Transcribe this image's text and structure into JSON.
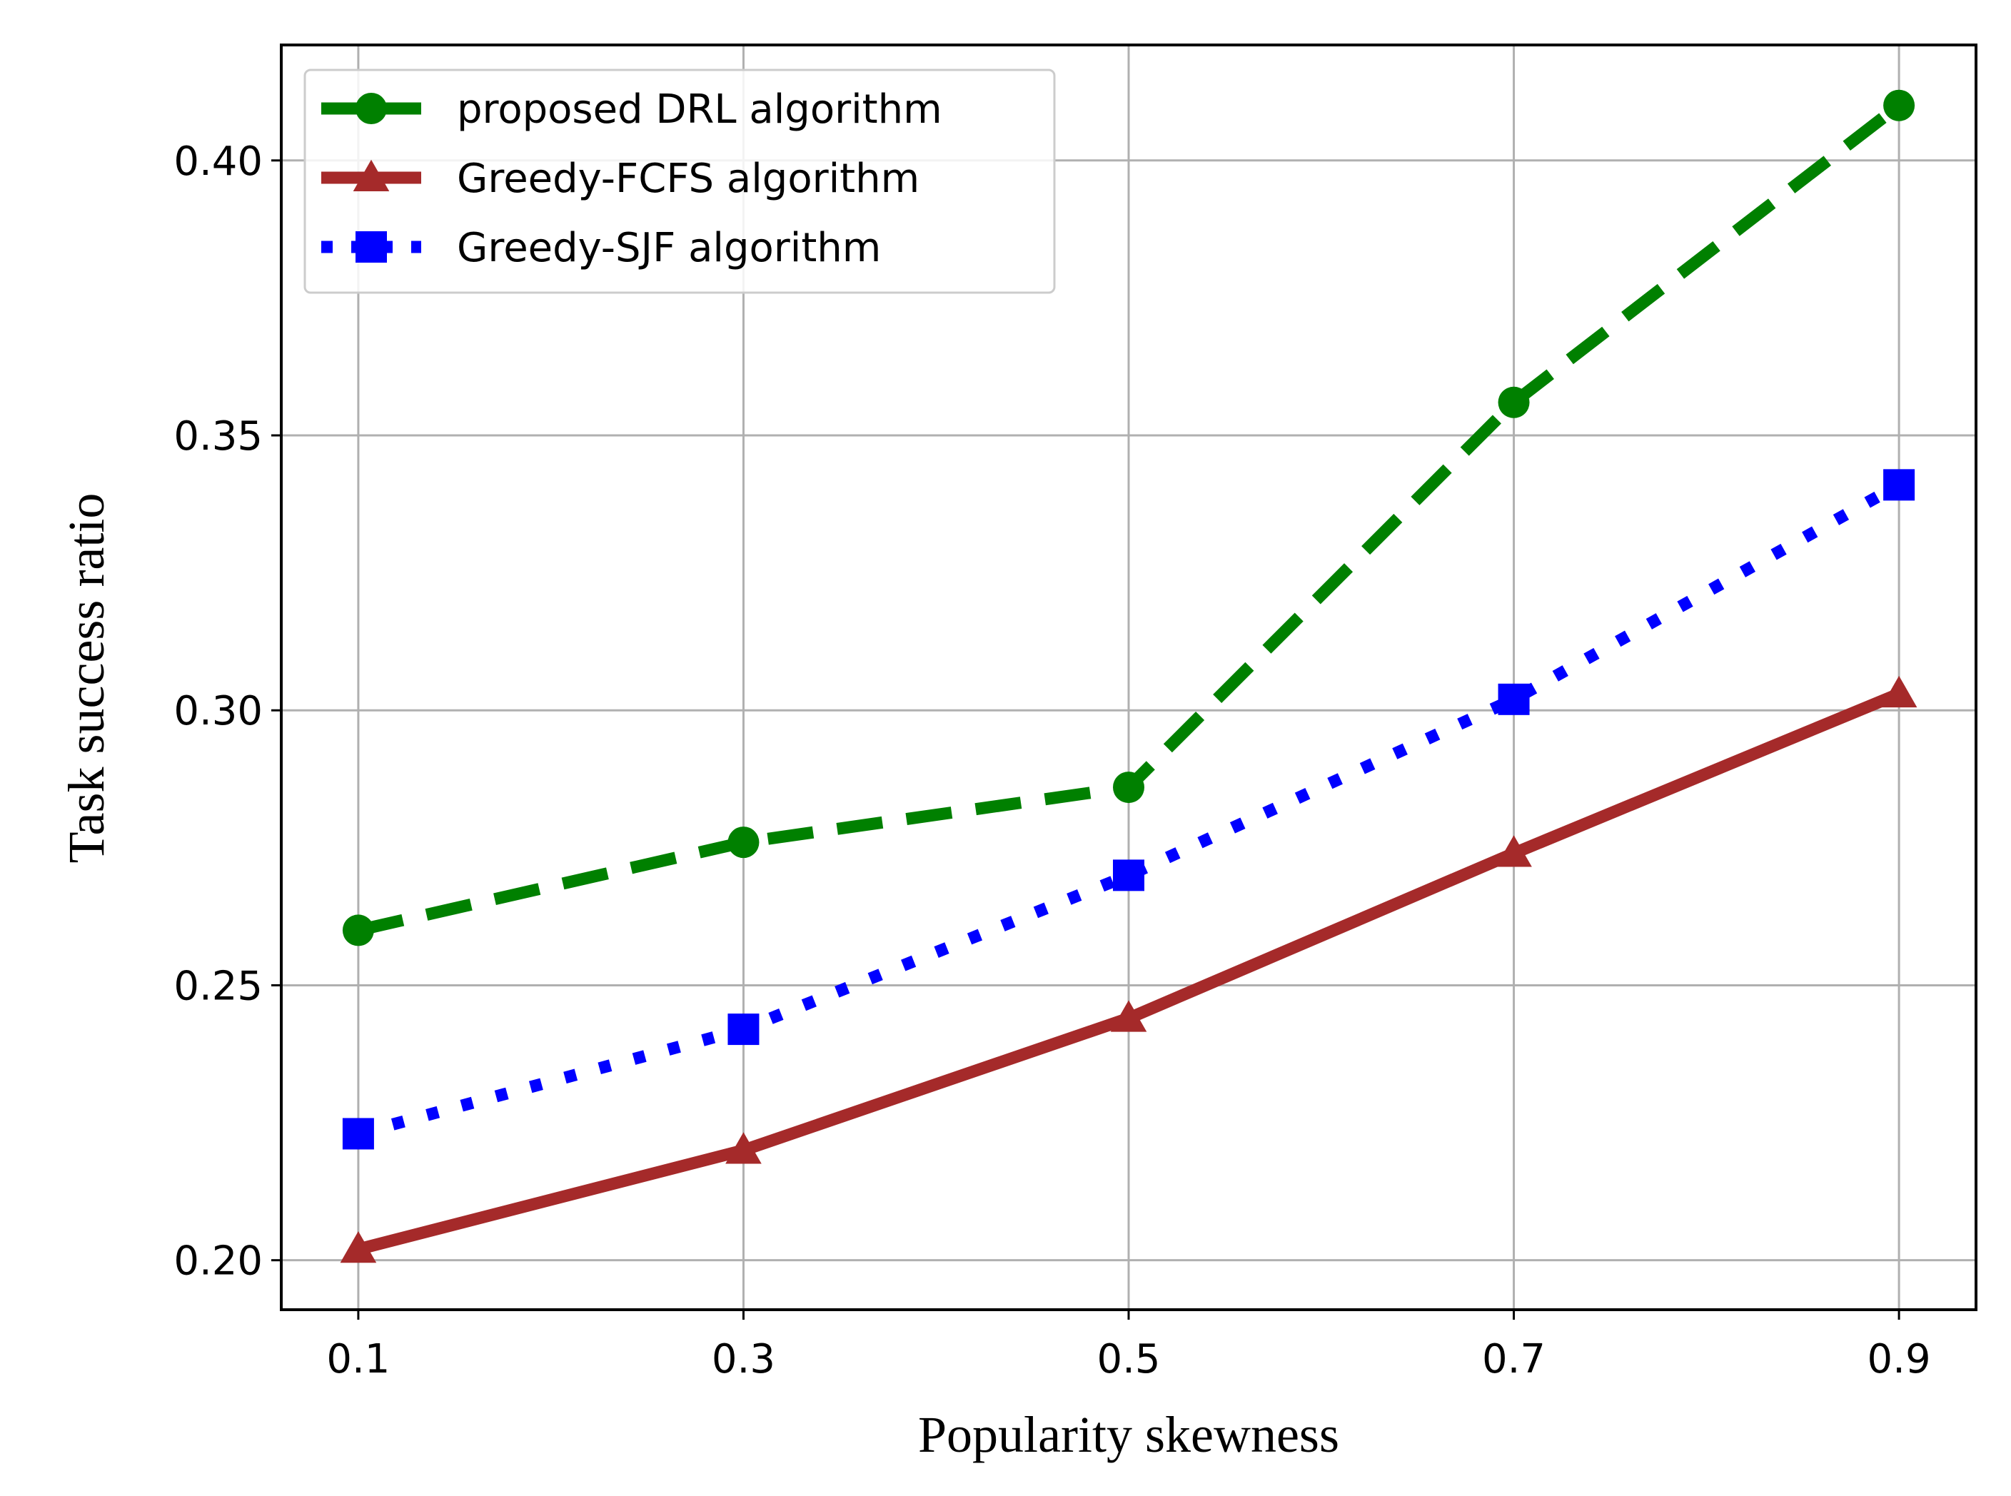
{
  "chart_data": {
    "type": "line",
    "title": "",
    "xlabel": "Popularity skewness",
    "ylabel": "Task success ratio",
    "x": [
      0.1,
      0.3,
      0.5,
      0.7,
      0.9
    ],
    "x_tick_labels": [
      "0.1",
      "0.3",
      "0.5",
      "0.7",
      "0.9"
    ],
    "xlim": [
      0.06,
      0.94
    ],
    "y_ticks": [
      0.2,
      0.25,
      0.3,
      0.35,
      0.4
    ],
    "y_tick_labels": [
      "0.20",
      "0.25",
      "0.30",
      "0.35",
      "0.40"
    ],
    "ylim": [
      0.191,
      0.421
    ],
    "grid": true,
    "legend_position": "top-left",
    "series": [
      {
        "name": "proposed DRL algorithm",
        "color": "#008000",
        "line_style": "dashed",
        "marker": "circle",
        "values": [
          0.26,
          0.276,
          0.286,
          0.356,
          0.41
        ]
      },
      {
        "name": "Greedy-FCFS algorithm",
        "color": "#a52a2a",
        "line_style": "solid",
        "marker": "triangle",
        "values": [
          0.202,
          0.22,
          0.244,
          0.274,
          0.303
        ]
      },
      {
        "name": "Greedy-SJF algorithm",
        "color": "#0000ff",
        "line_style": "dotted",
        "marker": "square",
        "values": [
          0.223,
          0.242,
          0.27,
          0.302,
          0.341
        ]
      }
    ]
  }
}
